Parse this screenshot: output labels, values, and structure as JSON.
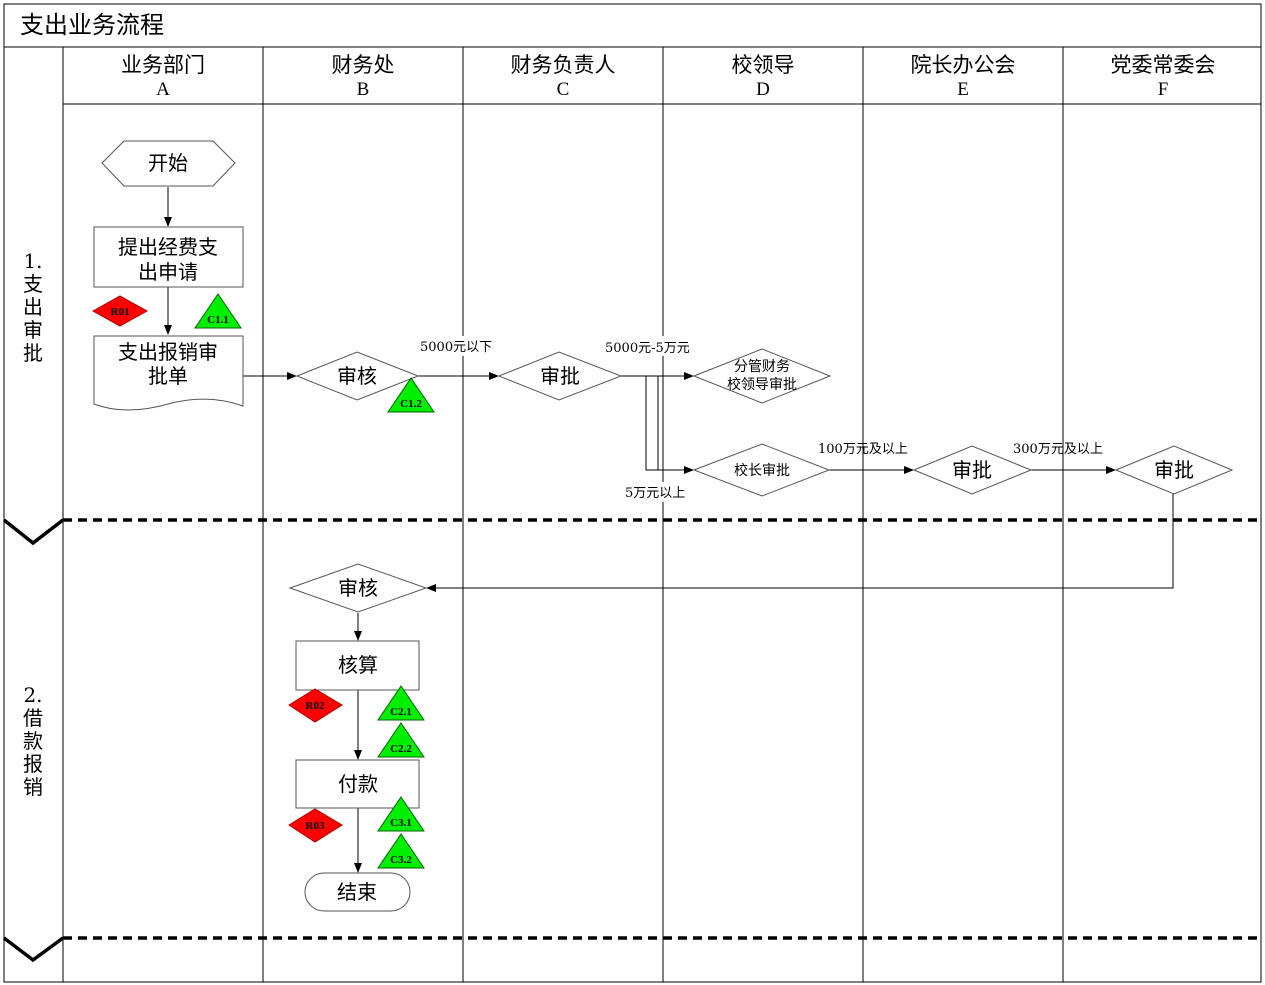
{
  "title": "支出业务流程",
  "lanes": [
    {
      "name": "业务部门",
      "letter": "A"
    },
    {
      "name": "财务处",
      "letter": "B"
    },
    {
      "name": "财务负责人",
      "letter": "C"
    },
    {
      "name": "校领导",
      "letter": "D"
    },
    {
      "name": "院长办公会",
      "letter": "E"
    },
    {
      "name": "党委常委会",
      "letter": "F"
    }
  ],
  "phases": [
    {
      "number": "1.",
      "chars": [
        "支",
        "出",
        "审",
        "批"
      ]
    },
    {
      "number": "2.",
      "chars": [
        "借",
        "款",
        "报",
        "销"
      ]
    }
  ],
  "nodes": {
    "start": "开始",
    "apply": [
      "提出经费支",
      "出申请"
    ],
    "form": [
      "支出报销审",
      "批单"
    ],
    "review1": "审核",
    "approve_c": "审批",
    "deputy": [
      "分管财务",
      "校领导审批"
    ],
    "president": "校长审批",
    "approve_e": "审批",
    "approve_f": "审批",
    "review2": "审核",
    "accounting": "核算",
    "payment": "付款",
    "end": "结束"
  },
  "edge_labels": {
    "below_5000": "5000元以下",
    "5000_to_5w": "5000元-5万元",
    "above_5w": "5万元以上",
    "above_100w": "100万元及以上",
    "above_300w": "300万元及以上"
  },
  "risk_badges": {
    "r01": "R01",
    "r02": "R02",
    "r03": "R03"
  },
  "control_badges": {
    "c11": "C1.1",
    "c12": "C1.2",
    "c21": "C2.1",
    "c22": "C2.2",
    "c31": "C3.1",
    "c32": "C3.2"
  },
  "colors": {
    "risk": "#ff0000",
    "control": "#00ee00",
    "line": "#000000"
  }
}
